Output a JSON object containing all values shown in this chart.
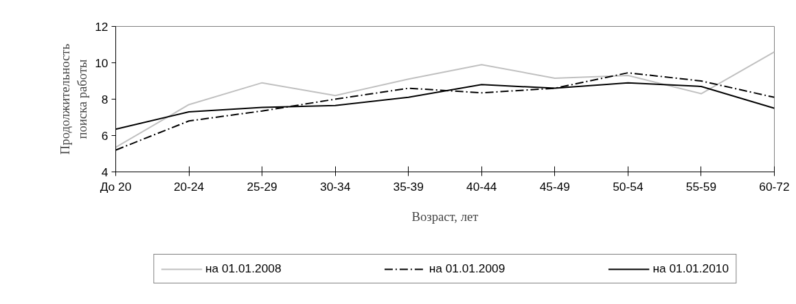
{
  "chart_data": {
    "type": "line",
    "xlabel": "Возраст, лет",
    "ylabel": "Продолжительность поиска работы",
    "categories": [
      "До 20",
      "20-24",
      "25-29",
      "30-34",
      "35-39",
      "40-44",
      "45-49",
      "50-54",
      "55-59",
      "60-72"
    ],
    "ylim": [
      4,
      12
    ],
    "yticks": [
      4,
      6,
      8,
      10,
      12
    ],
    "grid": false,
    "legend": "bottom",
    "series": [
      {
        "name": "на 01.01.2008",
        "color": "#c0c0c0",
        "line_style": "solid",
        "values": [
          5.35,
          7.7,
          8.9,
          8.2,
          9.1,
          9.9,
          9.15,
          9.3,
          8.3,
          10.6
        ]
      },
      {
        "name": "на 01.01.2009",
        "color": "#000000",
        "line_style": "dashdot",
        "values": [
          5.2,
          6.8,
          7.35,
          8.0,
          8.6,
          8.35,
          8.6,
          9.45,
          9.0,
          8.1
        ]
      },
      {
        "name": "на 01.01.2010",
        "color": "#000000",
        "line_style": "solid",
        "values": [
          6.35,
          7.3,
          7.55,
          7.65,
          8.1,
          8.8,
          8.6,
          8.9,
          8.7,
          7.5
        ]
      }
    ]
  }
}
